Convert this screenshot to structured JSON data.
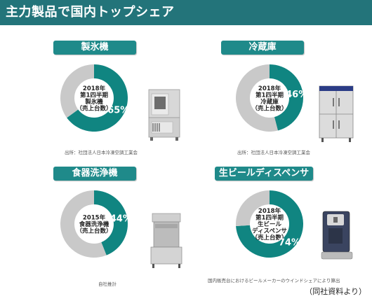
{
  "header": {
    "title": "主力製品で国内トップシェア"
  },
  "colors": {
    "header_bg": "#23747a",
    "pill_bg": "#1f8a8a",
    "share": "#108581",
    "rest": "#c9c9c9"
  },
  "chart_data": [
    {
      "type": "pie",
      "title": "製氷機",
      "center_text": [
        "2018年",
        "第1四半期",
        "製氷機",
        "（売上台数）"
      ],
      "values": [
        65,
        35
      ],
      "value_label": "65%",
      "source": "出所：社団法人日本冷凍空調工業会"
    },
    {
      "type": "pie",
      "title": "冷蔵庫",
      "center_text": [
        "2018年",
        "第1四半期",
        "冷蔵庫",
        "（売上台数）"
      ],
      "values": [
        46,
        54
      ],
      "value_label": "46%",
      "source": "出所：社団法人日本冷凍空調工業会"
    },
    {
      "type": "pie",
      "title": "食器洗浄機",
      "center_text": [
        "2015年",
        "食器洗浄機",
        "（売上台数）"
      ],
      "values": [
        44,
        56
      ],
      "value_label": "44%",
      "source": "自社推計"
    },
    {
      "type": "pie",
      "title": "生ビールディスペンサ",
      "center_text": [
        "2018年",
        "第1四半期",
        "生ビール",
        "ディスペンサ",
        "（売上台数）"
      ],
      "values": [
        74,
        26
      ],
      "value_label": "74%",
      "source": "国内販売台におけるビールメーカーのウインドシェアにより算出"
    }
  ],
  "footer": {
    "note": "（同社資料より）"
  }
}
